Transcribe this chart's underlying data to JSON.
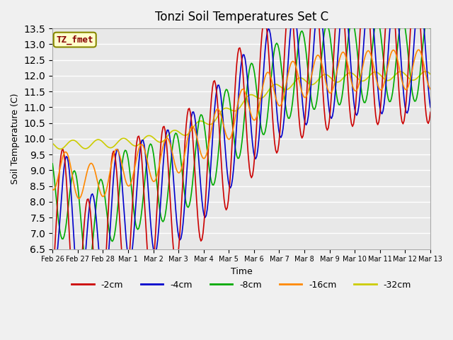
{
  "title": "Tonzi Soil Temperatures Set C",
  "xlabel": "Time",
  "ylabel": "Soil Temperature (C)",
  "ylim": [
    6.5,
    13.5
  ],
  "series_colors": {
    "-2cm": "#cc0000",
    "-4cm": "#0000cc",
    "-8cm": "#00aa00",
    "-16cm": "#ff8800",
    "-32cm": "#cccc00"
  },
  "annotation_text": "TZ_fmet",
  "annotation_bg": "#ffffcc",
  "annotation_border": "#888800",
  "annotation_text_color": "#880000",
  "background_color": "#e8e8e8",
  "grid_color": "#ffffff",
  "x_tick_labels": [
    "Feb 26",
    "Feb 27",
    "Feb 28",
    "Mar 1",
    "Mar 2",
    "Mar 3",
    "Mar 4",
    "Mar 5",
    "Mar 6",
    "Mar 7",
    "Mar 8",
    "Mar 9",
    "Mar 10",
    "Mar 11",
    "Mar 12",
    "Mar 13"
  ],
  "yticks": [
    6.5,
    7.0,
    7.5,
    8.0,
    8.5,
    9.0,
    9.5,
    10.0,
    10.5,
    11.0,
    11.5,
    12.0,
    12.5,
    13.0,
    13.5
  ]
}
